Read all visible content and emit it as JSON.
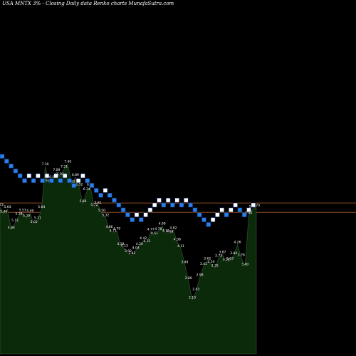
{
  "chart_data": {
    "type": "renko",
    "title": "USA MNTX 3% - Closing Daily data Renko charts MunafaSutra.com",
    "colors": {
      "background": "#000000",
      "up_brick": "#ffffff",
      "down_brick": "#2a7fe8",
      "brick_border": "#0a2a66",
      "reference_line": "#8b4a22",
      "volume_fill": "#0a2a0a",
      "volume_line": "#3a5a3a"
    },
    "bricks": [
      {
        "dir": "down",
        "level": 0
      },
      {
        "dir": "down",
        "level": -1
      },
      {
        "dir": "down",
        "level": -2
      },
      {
        "dir": "down",
        "level": -3
      },
      {
        "dir": "down",
        "level": -4
      },
      {
        "dir": "down",
        "level": -5
      },
      {
        "dir": "up",
        "level": -4
      },
      {
        "dir": "down",
        "level": -5
      },
      {
        "dir": "up",
        "level": -4
      },
      {
        "dir": "down",
        "level": -5
      },
      {
        "dir": "up",
        "level": -4
      },
      {
        "dir": "down",
        "level": -5
      },
      {
        "dir": "up",
        "level": -4
      },
      {
        "dir": "down",
        "level": -5
      },
      {
        "dir": "up",
        "level": -4
      },
      {
        "dir": "down",
        "level": -5
      },
      {
        "dir": "down",
        "level": -6
      },
      {
        "dir": "up",
        "level": -5
      },
      {
        "dir": "up",
        "level": -4
      },
      {
        "dir": "down",
        "level": -5
      },
      {
        "dir": "down",
        "level": -6
      },
      {
        "dir": "down",
        "level": -7
      },
      {
        "dir": "down",
        "level": -8
      },
      {
        "dir": "up",
        "level": -7
      },
      {
        "dir": "down",
        "level": -8
      },
      {
        "dir": "down",
        "level": -9
      },
      {
        "dir": "down",
        "level": -10
      },
      {
        "dir": "down",
        "level": -11
      },
      {
        "dir": "down",
        "level": -12
      },
      {
        "dir": "down",
        "level": -13
      },
      {
        "dir": "up",
        "level": -12
      },
      {
        "dir": "down",
        "level": -13
      },
      {
        "dir": "up",
        "level": -12
      },
      {
        "dir": "up",
        "level": -11
      },
      {
        "dir": "up",
        "level": -10
      },
      {
        "dir": "up",
        "level": -9
      },
      {
        "dir": "down",
        "level": -10
      },
      {
        "dir": "up",
        "level": -9
      },
      {
        "dir": "down",
        "level": -10
      },
      {
        "dir": "up",
        "level": -9
      },
      {
        "dir": "down",
        "level": -10
      },
      {
        "dir": "up",
        "level": -9
      },
      {
        "dir": "down",
        "level": -10
      },
      {
        "dir": "down",
        "level": -11
      },
      {
        "dir": "down",
        "level": -12
      },
      {
        "dir": "down",
        "level": -13
      },
      {
        "dir": "down",
        "level": -14
      },
      {
        "dir": "up",
        "level": -13
      },
      {
        "dir": "up",
        "level": -12
      },
      {
        "dir": "up",
        "level": -11
      },
      {
        "dir": "down",
        "level": -12
      },
      {
        "dir": "up",
        "level": -11
      },
      {
        "dir": "up",
        "level": -10
      },
      {
        "dir": "down",
        "level": -11
      },
      {
        "dir": "down",
        "level": -12
      },
      {
        "dir": "up",
        "level": -11
      },
      {
        "dir": "up",
        "level": -10
      }
    ],
    "reference_lines": [
      -9.5,
      -11.5
    ],
    "volume": {
      "values": [
        5.72,
        5.46,
        5.64,
        4.84,
        5.11,
        5.38,
        5.51,
        5.29,
        5.49,
        5.05,
        5.21,
        5.64,
        7.3,
        6.66,
        6.81,
        7.09,
        6.92,
        7.21,
        7.4,
        6.63,
        6.89,
        6.52,
        5.86,
        6.34,
        6.51,
        5.72,
        5.81,
        5.5,
        5.32,
        4.86,
        4.71,
        4.79,
        4.19,
        4.13,
        3.92,
        3.83,
        4.04,
        4.2,
        4.42,
        4.31,
        4.77,
        4.61,
        4.78,
        4.99,
        4.71,
        4.68,
        4.82,
        4.38,
        4.11,
        3.49,
        2.86,
        2.1,
        2.43,
        2.98,
        3.41,
        3.62,
        3.5,
        3.35,
        3.73,
        3.87,
        3.58,
        3.63,
        3.84,
        4.26,
        3.76,
        3.4,
        5.4,
        5.65,
        5.7
      ],
      "labels": [
        "5.72",
        "5.46",
        "5.64",
        "4.84",
        "5.11",
        "5.38",
        "5.51",
        "5.29",
        "5.49",
        "5.05",
        "5.21",
        "5.64",
        "7.30",
        "6.66",
        "6.81",
        "7.09",
        "6.92",
        "7.21",
        "7.40",
        "6.63",
        "6.89",
        "6.52",
        "5.86",
        "6.34",
        "6.51",
        "5.72",
        "5.81",
        "5.50",
        "5.32",
        "4.86",
        "4.71",
        "4.79",
        "4.19",
        "4.13",
        "3.92",
        "3.83",
        "4.04",
        "4.20",
        "4.42",
        "4.31",
        "4.77",
        "4.61",
        "4.78",
        "4.99",
        "4.71",
        "4.68",
        "4.82",
        "4.38",
        "4.11",
        "3.49",
        "2.86",
        "2.10",
        "2.43",
        "2.98",
        "3.41",
        "3.62",
        "3.50",
        "3.35",
        "3.73",
        "3.87",
        "3.58",
        "3.63",
        "3.84",
        "4.26",
        "3.76",
        "3.40",
        "5.40",
        "5.65",
        "5.70"
      ],
      "ylim": [
        0,
        8.5
      ]
    },
    "grid": false,
    "legend": "none"
  }
}
